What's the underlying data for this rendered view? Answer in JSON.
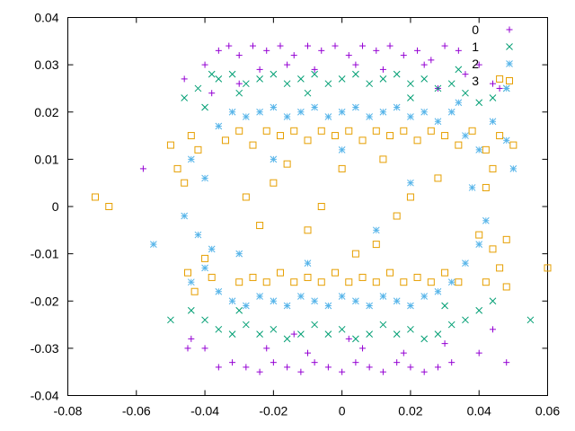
{
  "chart_data": {
    "type": "scatter",
    "title": "",
    "xlabel": "",
    "ylabel": "",
    "xlim": [
      -0.08,
      0.06
    ],
    "ylim": [
      -0.04,
      0.04
    ],
    "xticks": [
      -0.08,
      -0.06,
      -0.04,
      -0.02,
      0,
      0.02,
      0.04,
      0.06
    ],
    "xtick_labels": [
      "-0.08",
      "-0.06",
      "-0.04",
      "-0.02",
      "0",
      "0.02",
      "0.04",
      "0.06"
    ],
    "yticks": [
      -0.04,
      -0.03,
      -0.02,
      -0.01,
      0,
      0.01,
      0.02,
      0.03,
      0.04
    ],
    "ytick_labels": [
      "-0.04",
      "-0.03",
      "-0.02",
      "-0.01",
      "0",
      "0.01",
      "0.02",
      "0.03",
      "0.04"
    ],
    "grid": false,
    "legend_position": "top-right",
    "series": [
      {
        "name": "0",
        "marker": "plus",
        "color": "#9400d3",
        "points": [
          [
            -0.036,
            0.033
          ],
          [
            -0.033,
            0.034
          ],
          [
            -0.03,
            0.032
          ],
          [
            -0.026,
            0.034
          ],
          [
            -0.022,
            0.033
          ],
          [
            -0.018,
            0.034
          ],
          [
            -0.014,
            0.032
          ],
          [
            -0.01,
            0.034
          ],
          [
            -0.006,
            0.033
          ],
          [
            -0.002,
            0.034
          ],
          [
            0.002,
            0.032
          ],
          [
            0.006,
            0.034
          ],
          [
            0.01,
            0.033
          ],
          [
            0.014,
            0.034
          ],
          [
            0.018,
            0.032
          ],
          [
            0.022,
            0.033
          ],
          [
            0.026,
            0.031
          ],
          [
            0.03,
            0.034
          ],
          [
            0.034,
            0.033
          ],
          [
            -0.04,
            0.03
          ],
          [
            -0.046,
            0.027
          ],
          [
            -0.038,
            0.024
          ],
          [
            0.036,
            0.028
          ],
          [
            0.04,
            0.03
          ],
          [
            0.044,
            0.026
          ],
          [
            0.046,
            0.025
          ],
          [
            -0.024,
            0.029
          ],
          [
            -0.016,
            0.03
          ],
          [
            -0.008,
            0.029
          ],
          [
            0.004,
            0.03
          ],
          [
            0.012,
            0.029
          ],
          [
            0.024,
            0.03
          ],
          [
            -0.03,
            0.026
          ],
          [
            0.028,
            0.025
          ],
          [
            -0.036,
            -0.034
          ],
          [
            -0.032,
            -0.033
          ],
          [
            -0.028,
            -0.034
          ],
          [
            -0.024,
            -0.035
          ],
          [
            -0.02,
            -0.033
          ],
          [
            -0.016,
            -0.034
          ],
          [
            -0.012,
            -0.035
          ],
          [
            -0.008,
            -0.033
          ],
          [
            -0.004,
            -0.034
          ],
          [
            0.0,
            -0.035
          ],
          [
            0.004,
            -0.033
          ],
          [
            0.008,
            -0.034
          ],
          [
            0.012,
            -0.035
          ],
          [
            0.016,
            -0.033
          ],
          [
            0.02,
            -0.034
          ],
          [
            0.024,
            -0.035
          ],
          [
            0.028,
            -0.034
          ],
          [
            0.032,
            -0.033
          ],
          [
            -0.04,
            -0.03
          ],
          [
            -0.044,
            -0.028
          ],
          [
            0.04,
            -0.031
          ],
          [
            0.044,
            -0.026
          ],
          [
            0.048,
            -0.033
          ],
          [
            -0.022,
            -0.03
          ],
          [
            -0.01,
            -0.031
          ],
          [
            0.006,
            -0.03
          ],
          [
            0.018,
            -0.031
          ],
          [
            0.03,
            -0.029
          ],
          [
            -0.058,
            0.008
          ],
          [
            -0.045,
            -0.03
          ],
          [
            0.002,
            -0.028
          ],
          [
            -0.014,
            -0.027
          ]
        ]
      },
      {
        "name": "1",
        "marker": "cross",
        "color": "#009e73",
        "points": [
          [
            -0.046,
            0.023
          ],
          [
            -0.042,
            0.025
          ],
          [
            -0.036,
            0.027
          ],
          [
            -0.032,
            0.028
          ],
          [
            -0.028,
            0.026
          ],
          [
            -0.024,
            0.027
          ],
          [
            -0.02,
            0.028
          ],
          [
            -0.016,
            0.026
          ],
          [
            -0.012,
            0.027
          ],
          [
            -0.008,
            0.028
          ],
          [
            -0.004,
            0.026
          ],
          [
            0.0,
            0.027
          ],
          [
            0.004,
            0.028
          ],
          [
            0.008,
            0.026
          ],
          [
            0.012,
            0.027
          ],
          [
            0.016,
            0.028
          ],
          [
            0.02,
            0.026
          ],
          [
            0.024,
            0.027
          ],
          [
            0.028,
            0.025
          ],
          [
            0.032,
            0.026
          ],
          [
            0.036,
            0.024
          ],
          [
            0.04,
            0.022
          ],
          [
            0.044,
            0.023
          ],
          [
            0.048,
            0.025
          ],
          [
            -0.04,
            0.021
          ],
          [
            -0.03,
            0.024
          ],
          [
            0.02,
            0.023
          ],
          [
            -0.01,
            0.024
          ],
          [
            -0.044,
            -0.022
          ],
          [
            -0.04,
            -0.024
          ],
          [
            -0.036,
            -0.026
          ],
          [
            -0.032,
            -0.027
          ],
          [
            -0.028,
            -0.025
          ],
          [
            -0.024,
            -0.027
          ],
          [
            -0.02,
            -0.026
          ],
          [
            -0.016,
            -0.028
          ],
          [
            -0.012,
            -0.027
          ],
          [
            -0.008,
            -0.025
          ],
          [
            -0.004,
            -0.027
          ],
          [
            0.0,
            -0.026
          ],
          [
            0.004,
            -0.028
          ],
          [
            0.008,
            -0.027
          ],
          [
            0.012,
            -0.025
          ],
          [
            0.016,
            -0.027
          ],
          [
            0.02,
            -0.026
          ],
          [
            0.024,
            -0.028
          ],
          [
            0.028,
            -0.027
          ],
          [
            0.032,
            -0.025
          ],
          [
            0.036,
            -0.024
          ],
          [
            0.04,
            -0.022
          ],
          [
            0.044,
            -0.02
          ],
          [
            0.055,
            -0.024
          ],
          [
            -0.05,
            -0.024
          ],
          [
            -0.03,
            -0.022
          ],
          [
            0.03,
            -0.021
          ],
          [
            -0.038,
            0.028
          ],
          [
            0.034,
            0.029
          ]
        ]
      },
      {
        "name": "2",
        "marker": "star",
        "color": "#56b4e9",
        "points": [
          [
            -0.036,
            0.017
          ],
          [
            -0.032,
            0.02
          ],
          [
            -0.028,
            0.019
          ],
          [
            -0.024,
            0.02
          ],
          [
            -0.02,
            0.021
          ],
          [
            -0.016,
            0.019
          ],
          [
            -0.012,
            0.02
          ],
          [
            -0.008,
            0.021
          ],
          [
            -0.004,
            0.019
          ],
          [
            0.0,
            0.02
          ],
          [
            0.004,
            0.021
          ],
          [
            0.008,
            0.019
          ],
          [
            0.012,
            0.02
          ],
          [
            0.016,
            0.021
          ],
          [
            0.02,
            0.019
          ],
          [
            0.024,
            0.02
          ],
          [
            0.028,
            0.018
          ],
          [
            0.032,
            0.02
          ],
          [
            0.036,
            0.015
          ],
          [
            0.04,
            0.012
          ],
          [
            0.048,
            0.014
          ],
          [
            0.05,
            0.008
          ],
          [
            -0.044,
            0.01
          ],
          [
            -0.04,
            0.006
          ],
          [
            -0.046,
            -0.002
          ],
          [
            -0.042,
            -0.006
          ],
          [
            -0.038,
            -0.009
          ],
          [
            -0.055,
            -0.008
          ],
          [
            -0.044,
            -0.016
          ],
          [
            -0.04,
            -0.013
          ],
          [
            -0.036,
            -0.018
          ],
          [
            -0.032,
            -0.02
          ],
          [
            -0.028,
            -0.021
          ],
          [
            -0.024,
            -0.019
          ],
          [
            -0.02,
            -0.02
          ],
          [
            -0.016,
            -0.021
          ],
          [
            -0.012,
            -0.019
          ],
          [
            -0.008,
            -0.02
          ],
          [
            -0.004,
            -0.021
          ],
          [
            0.0,
            -0.019
          ],
          [
            0.004,
            -0.02
          ],
          [
            0.008,
            -0.021
          ],
          [
            0.012,
            -0.019
          ],
          [
            0.016,
            -0.02
          ],
          [
            0.02,
            -0.021
          ],
          [
            0.024,
            -0.019
          ],
          [
            0.028,
            -0.018
          ],
          [
            0.032,
            -0.016
          ],
          [
            0.036,
            -0.012
          ],
          [
            0.04,
            -0.008
          ],
          [
            0.042,
            -0.003
          ],
          [
            0.038,
            0.004
          ],
          [
            0.044,
            0.018
          ],
          [
            0.048,
            0.025
          ],
          [
            0.034,
            0.022
          ],
          [
            -0.03,
            -0.01
          ],
          [
            -0.02,
            0.01
          ],
          [
            0.01,
            -0.005
          ],
          [
            0.02,
            0.005
          ],
          [
            -0.01,
            -0.012
          ],
          [
            0.0,
            0.012
          ]
        ]
      },
      {
        "name": "3",
        "marker": "square",
        "color": "#e69f00",
        "points": [
          [
            -0.072,
            0.002
          ],
          [
            -0.068,
            0.0
          ],
          [
            -0.05,
            0.013
          ],
          [
            -0.048,
            0.008
          ],
          [
            -0.046,
            0.005
          ],
          [
            -0.044,
            0.015
          ],
          [
            -0.042,
            0.012
          ],
          [
            -0.045,
            -0.014
          ],
          [
            -0.043,
            -0.018
          ],
          [
            -0.04,
            -0.011
          ],
          [
            -0.038,
            -0.015
          ],
          [
            -0.034,
            0.014
          ],
          [
            -0.03,
            0.016
          ],
          [
            -0.026,
            0.013
          ],
          [
            -0.022,
            0.016
          ],
          [
            -0.018,
            0.015
          ],
          [
            -0.014,
            0.016
          ],
          [
            -0.01,
            0.014
          ],
          [
            -0.006,
            0.016
          ],
          [
            -0.002,
            0.015
          ],
          [
            0.002,
            0.016
          ],
          [
            0.006,
            0.014
          ],
          [
            0.01,
            0.016
          ],
          [
            0.014,
            0.015
          ],
          [
            0.018,
            0.016
          ],
          [
            0.022,
            0.014
          ],
          [
            0.026,
            0.016
          ],
          [
            0.03,
            0.015
          ],
          [
            0.034,
            0.013
          ],
          [
            0.038,
            0.016
          ],
          [
            0.042,
            0.012
          ],
          [
            0.046,
            0.015
          ],
          [
            0.05,
            0.013
          ],
          [
            0.044,
            0.008
          ],
          [
            0.042,
            0.004
          ],
          [
            0.04,
            -0.006
          ],
          [
            0.044,
            -0.009
          ],
          [
            0.048,
            -0.007
          ],
          [
            0.046,
            -0.013
          ],
          [
            0.042,
            -0.016
          ],
          [
            0.048,
            -0.017
          ],
          [
            0.06,
            -0.013
          ],
          [
            -0.03,
            -0.016
          ],
          [
            -0.026,
            -0.015
          ],
          [
            -0.022,
            -0.016
          ],
          [
            -0.018,
            -0.014
          ],
          [
            -0.014,
            -0.016
          ],
          [
            -0.01,
            -0.015
          ],
          [
            -0.006,
            -0.016
          ],
          [
            -0.002,
            -0.014
          ],
          [
            0.002,
            -0.016
          ],
          [
            0.006,
            -0.015
          ],
          [
            0.01,
            -0.016
          ],
          [
            0.014,
            -0.014
          ],
          [
            0.018,
            -0.016
          ],
          [
            0.022,
            -0.015
          ],
          [
            0.026,
            -0.016
          ],
          [
            0.03,
            -0.014
          ],
          [
            0.034,
            -0.016
          ],
          [
            -0.02,
            0.005
          ],
          [
            -0.01,
            -0.005
          ],
          [
            0.0,
            0.008
          ],
          [
            0.01,
            -0.008
          ],
          [
            0.02,
            0.002
          ],
          [
            -0.024,
            -0.004
          ],
          [
            0.012,
            0.01
          ],
          [
            -0.006,
            0.0
          ],
          [
            0.004,
            -0.01
          ],
          [
            -0.016,
            0.009
          ],
          [
            0.016,
            -0.002
          ],
          [
            0.028,
            0.006
          ],
          [
            -0.028,
            0.002
          ],
          [
            0.046,
            0.027
          ]
        ]
      }
    ]
  }
}
